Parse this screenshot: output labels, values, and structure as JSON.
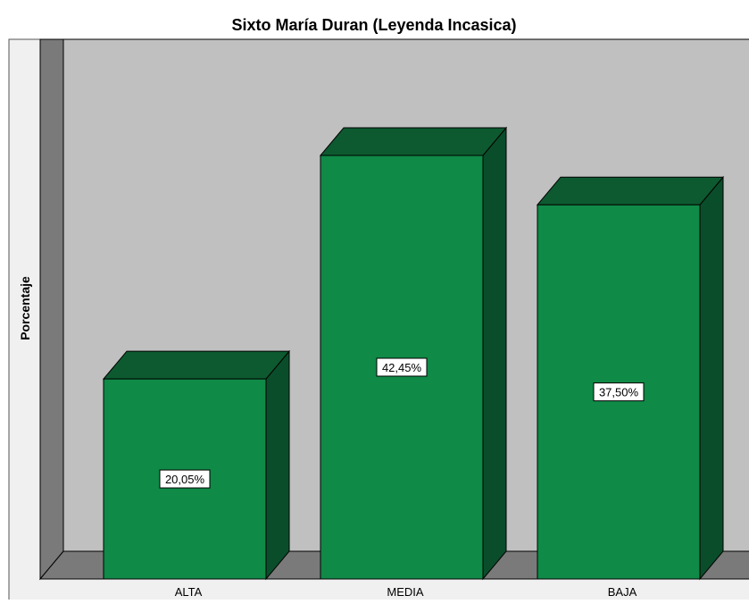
{
  "chart_data": {
    "type": "bar",
    "title": "Sixto María Duran (Leyenda Incasica)",
    "xlabel": "",
    "ylabel": "Porcentaje",
    "categories": [
      "ALTA",
      "MEDIA",
      "BAJA"
    ],
    "values": [
      20.05,
      42.45,
      37.5
    ],
    "data_labels": [
      "20,05%",
      "42,45%",
      "37,50%"
    ],
    "ylim": [
      0,
      45
    ],
    "style": "3d",
    "legend": "none",
    "grid": false
  },
  "colors": {
    "bar_front": "#0f8a47",
    "bar_top": "#0d5a30",
    "bar_side": "#0a4d2a",
    "plot_back": "#c0c0c0",
    "plot_left_wall": "#7a7a7a",
    "plot_floor": "#7a7a7a",
    "frame": "#f0f0f0",
    "outline": "#000000"
  }
}
